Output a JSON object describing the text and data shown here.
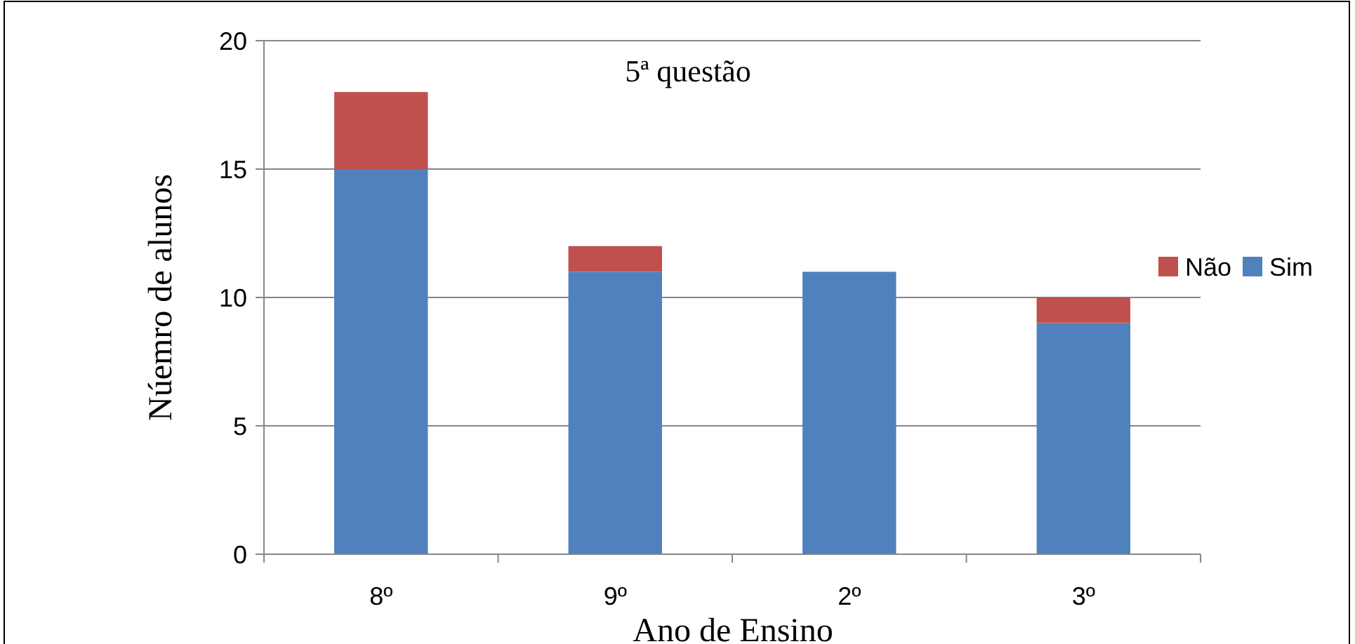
{
  "chart_data": {
    "type": "bar",
    "title": "5ª questão",
    "xlabel": "Ano de Ensino",
    "ylabel": "Núemro de alunos",
    "categories": [
      "8º",
      "9º",
      "2º",
      "3º"
    ],
    "stacked": true,
    "series": [
      {
        "name": "Sim",
        "color": "#4f81bd",
        "values": [
          15,
          11,
          11,
          9
        ]
      },
      {
        "name": "Não",
        "color": "#c0504d",
        "values": [
          3,
          1,
          0,
          1
        ]
      }
    ],
    "ylim": [
      0,
      20
    ],
    "yticks": [
      0,
      5,
      10,
      15,
      20
    ],
    "grid": "y",
    "legend": "right"
  }
}
